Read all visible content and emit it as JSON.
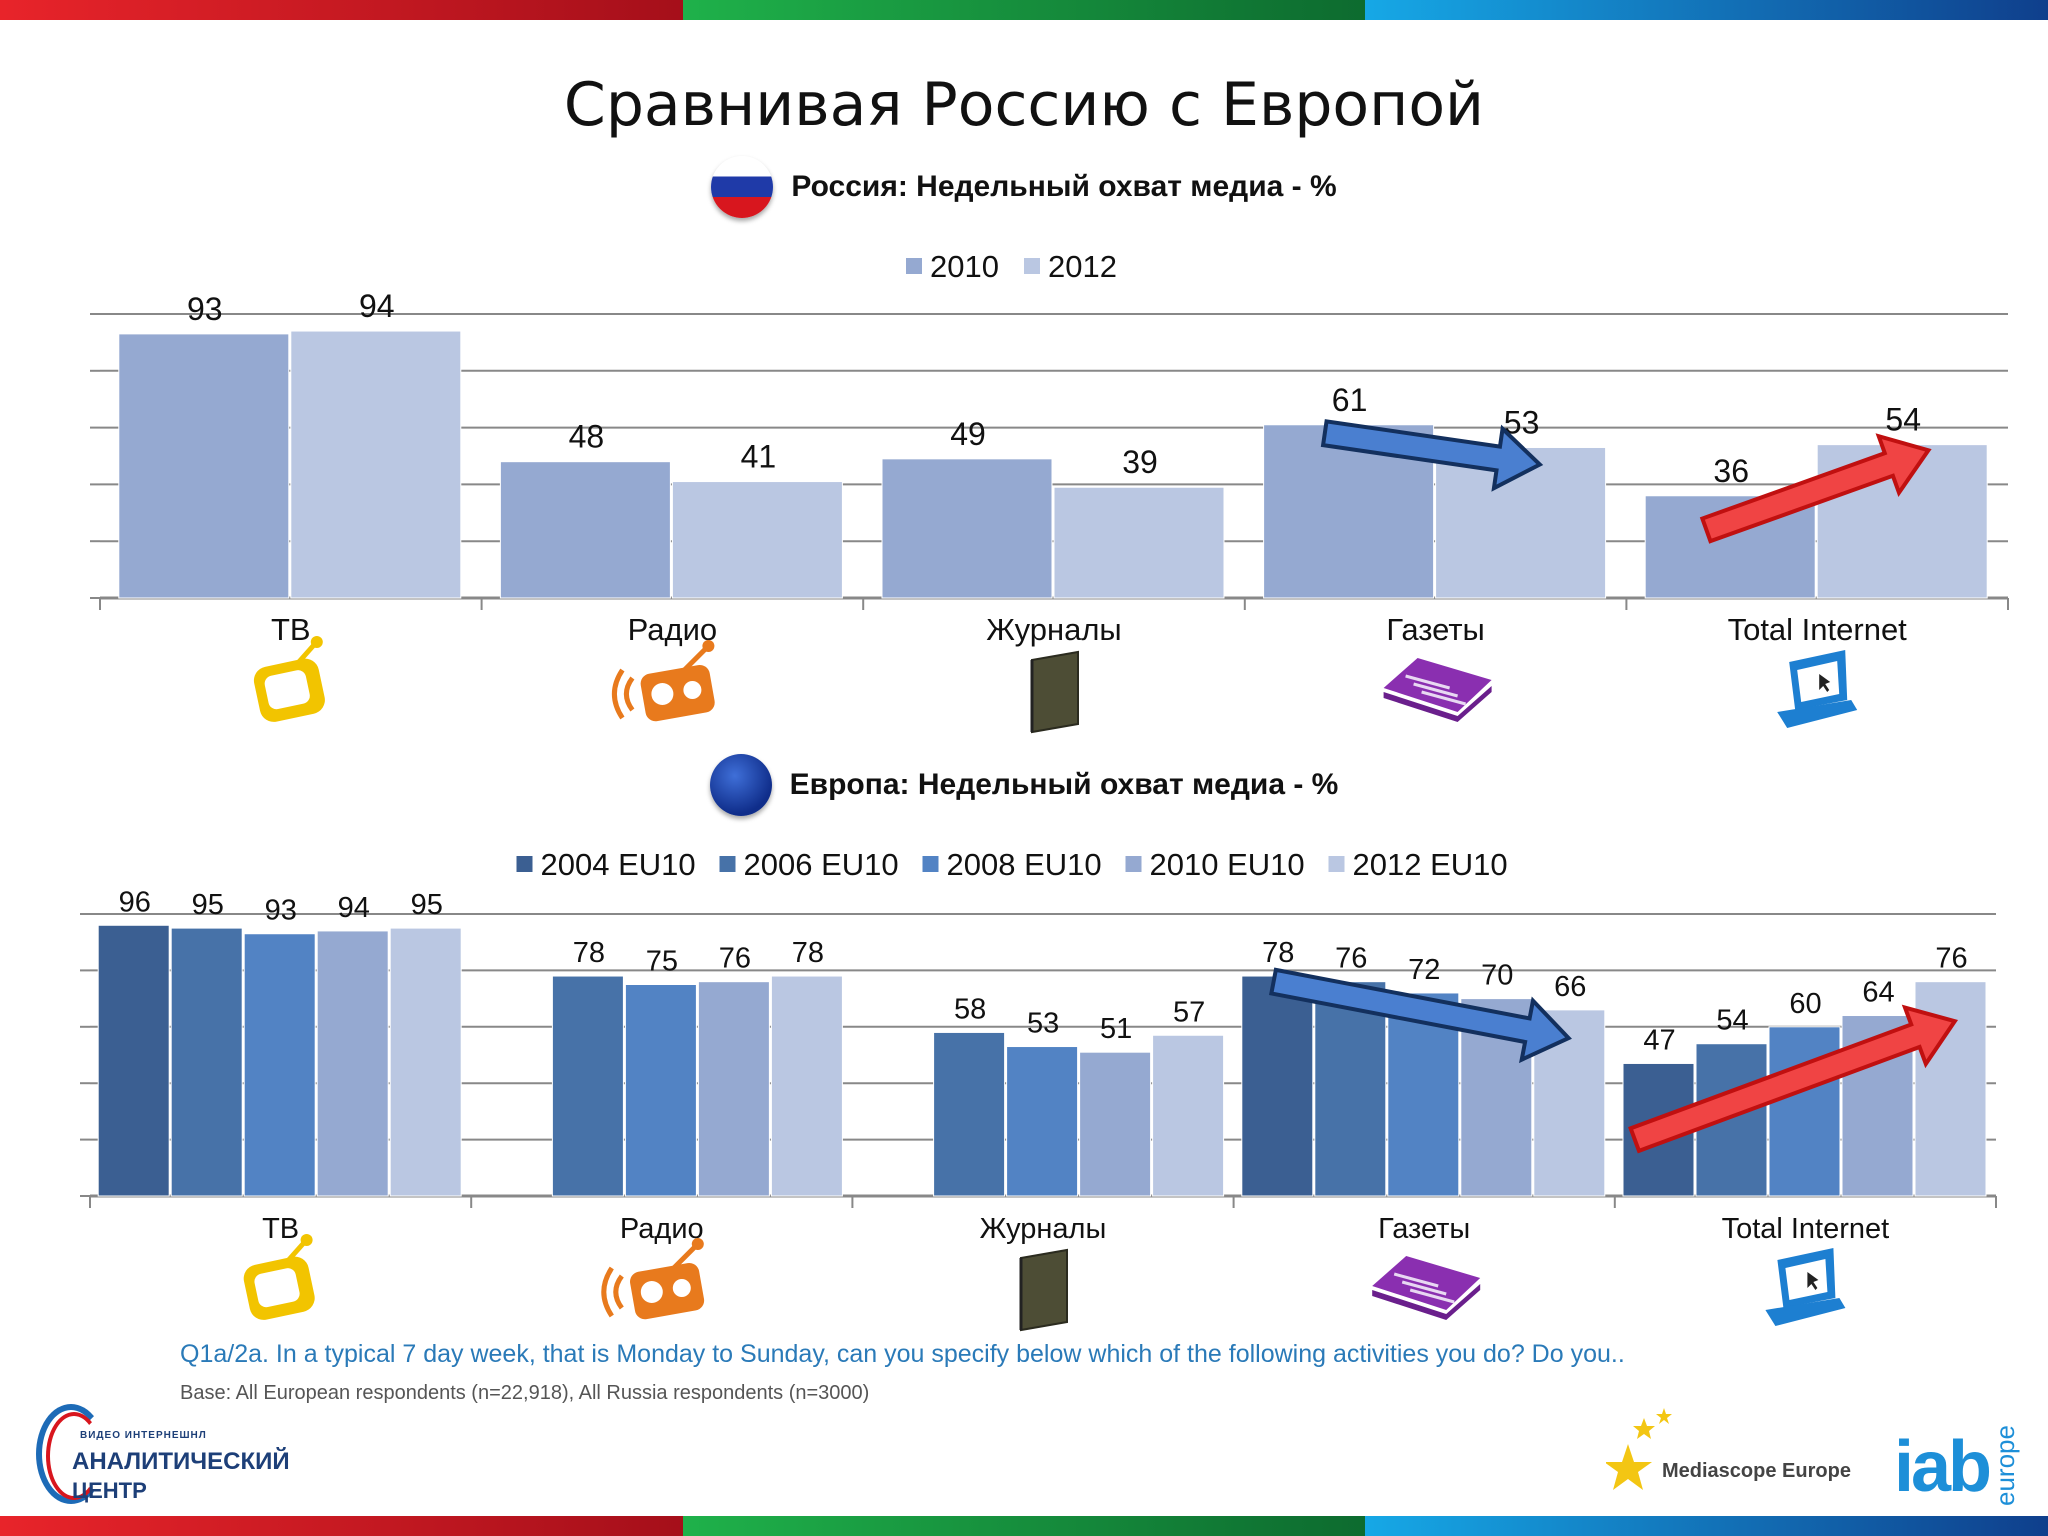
{
  "title": "Сравнивая Россию с Европой",
  "russia_header": "Россия: Недельный охват медиа - %",
  "europe_header": "Европа: Недельный охват медиа - %",
  "question": "Q1a/2a. In a typical 7 day week, that is Monday to Sunday, can you specify below which of the following activities you do? Do you..",
  "base": "Base: All European respondents (n=22,918), All Russia respondents (n=3000)",
  "logos": {
    "center_line1": "ВИДЕО ИНТЕРНЕШНЛ",
    "center_line2": "АНАЛИТИЧЕСКИЙ",
    "center_line3": "ЦЕНТР",
    "mediascope": "Mediascope Europe",
    "iab": "iab",
    "iab_suffix": "europe"
  },
  "icons": [
    "tv-icon",
    "radio-icon",
    "magazine-icon",
    "newspaper-icon",
    "laptop-icon"
  ],
  "chart_data": [
    {
      "type": "bar",
      "categories": [
        "ТВ",
        "Радио",
        "Журналы",
        "Газеты",
        "Total Internet"
      ],
      "series": [
        {
          "name": "2010",
          "values": [
            93,
            48,
            49,
            61,
            36
          ],
          "color": "#95a9d1"
        },
        {
          "name": "2012",
          "values": [
            94,
            41,
            39,
            53,
            54
          ],
          "color": "#bac7e2"
        }
      ],
      "ylim": [
        0,
        100
      ],
      "grid": true,
      "legend": "top-center",
      "annotations": [
        {
          "type": "arrow",
          "category": "Газеты",
          "direction": "down",
          "color": "#4a7fd0"
        },
        {
          "type": "arrow",
          "category": "Total Internet",
          "direction": "up",
          "color": "#f04444"
        }
      ]
    },
    {
      "type": "bar",
      "categories": [
        "ТВ",
        "Радио",
        "Журналы",
        "Газеты",
        "Total Internet"
      ],
      "series": [
        {
          "name": "2004 EU10",
          "values": [
            96,
            null,
            null,
            78,
            47
          ],
          "color": "#3b5f92"
        },
        {
          "name": "2006 EU10",
          "values": [
            95,
            78,
            58,
            76,
            54
          ],
          "color": "#4772a8"
        },
        {
          "name": "2008 EU10",
          "values": [
            93,
            75,
            53,
            72,
            60
          ],
          "color": "#5283c4"
        },
        {
          "name": "2010 EU10",
          "values": [
            94,
            76,
            51,
            70,
            64
          ],
          "color": "#95a9d1"
        },
        {
          "name": "2012 EU10",
          "values": [
            95,
            78,
            57,
            66,
            76
          ],
          "color": "#bac7e2"
        }
      ],
      "ylim": [
        0,
        100
      ],
      "grid": true,
      "legend": "top-center",
      "annotations": [
        {
          "type": "arrow",
          "category": "Газеты",
          "direction": "down",
          "color": "#4a7fd0"
        },
        {
          "type": "arrow",
          "category": "Total Internet",
          "direction": "up",
          "color": "#f04444"
        }
      ]
    }
  ]
}
